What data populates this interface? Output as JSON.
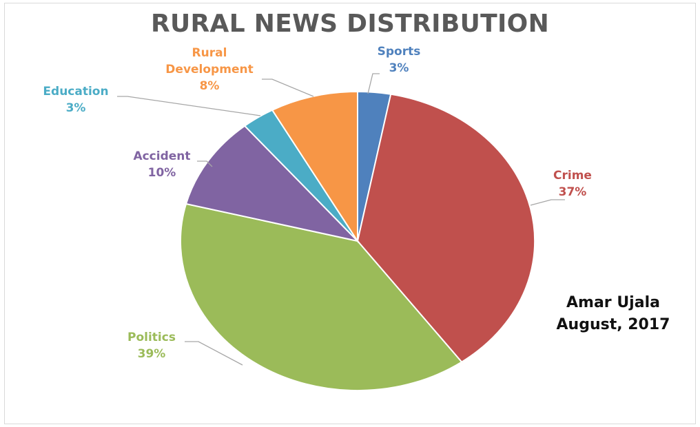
{
  "chart_data": {
    "type": "pie",
    "title": "RURAL NEWS DISTRIBUTION",
    "slices": [
      {
        "label": "Sports",
        "value": 3,
        "value_label": "3%",
        "color": "#4F81BD"
      },
      {
        "label": "Crime",
        "value": 37,
        "value_label": "37%",
        "color": "#C0504D"
      },
      {
        "label": "Politics",
        "value": 39,
        "value_label": "39%",
        "color": "#9BBB59"
      },
      {
        "label": "Accident",
        "value": 10,
        "value_label": "10%",
        "color": "#8064A2"
      },
      {
        "label": "Education",
        "value": 3,
        "value_label": "3%",
        "color": "#4BACC6"
      },
      {
        "label": "Rural Development",
        "value": 8,
        "value_label": "8%",
        "color": "#F79646"
      }
    ]
  },
  "annotation": {
    "line1": "Amar Ujala",
    "line2": "August, 2017"
  }
}
